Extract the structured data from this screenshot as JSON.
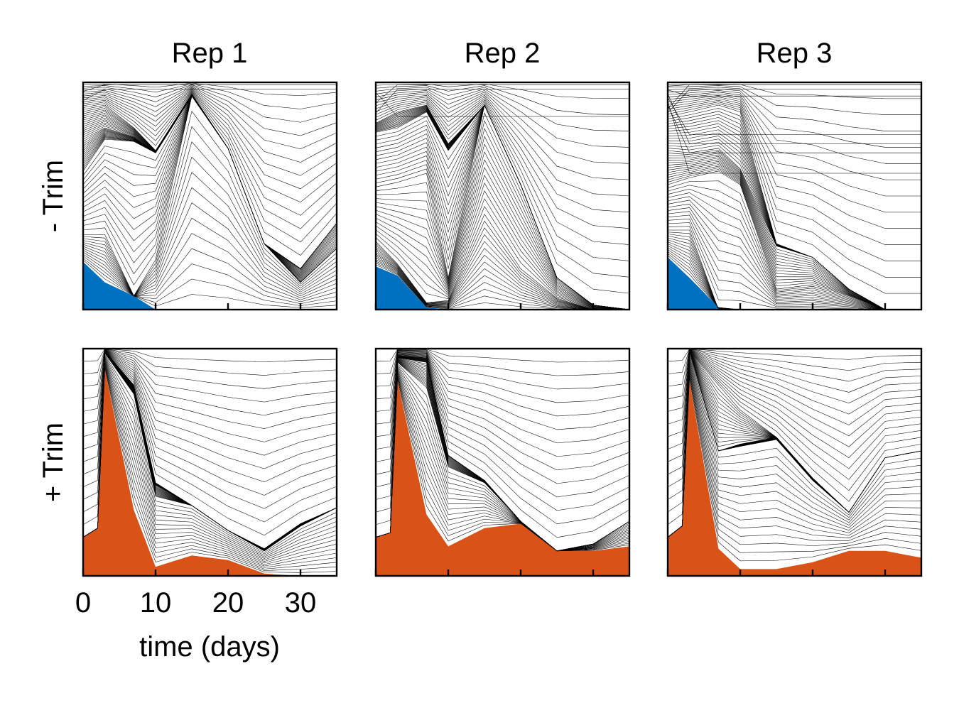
{
  "chart_data": {
    "type": "area",
    "subtype": "stacked-clone-fractions (Muller-style)",
    "grid": false,
    "legend": "none",
    "columns": [
      "Rep 1",
      "Rep 2",
      "Rep 3"
    ],
    "rows": [
      "- Trim",
      "+ Trim"
    ],
    "xlabel": "time (days)",
    "xlim": [
      0,
      35
    ],
    "xticks": [
      0,
      10,
      20,
      30
    ],
    "ylim": [
      0,
      1
    ],
    "highlight_colors": {
      "- Trim": "#0070c0",
      "+ Trim": "#d95319"
    },
    "line_color": "#000000",
    "panels": [
      {
        "row": "- Trim",
        "column": "Rep 1",
        "x": [
          0,
          3,
          7,
          10,
          15,
          20,
          25,
          30,
          35
        ],
        "highlight": [
          0.21,
          0.12,
          0.06,
          0.0,
          0.0,
          0.0,
          0.0,
          0.0,
          0.0
        ],
        "boundaries": [
          [
            0.33,
            0.33,
            0.06,
            0.22,
            0.94,
            0.71,
            0.29,
            0.12,
            0.27
          ],
          [
            0.61,
            0.75,
            0.74,
            0.69,
            0.94,
            0.71,
            0.29,
            0.12,
            0.27
          ],
          [
            0.75,
            0.8,
            0.76,
            0.69,
            0.94,
            0.71,
            0.29,
            0.18,
            0.38
          ],
          [
            0.88,
            0.9,
            0.8,
            0.7,
            0.95,
            0.71,
            0.29,
            0.18,
            0.38
          ]
        ],
        "top_boundaries": [
          0.97,
          0.99
        ],
        "n_boundaries": 70
      },
      {
        "row": "- Trim",
        "column": "Rep 2",
        "x": [
          0,
          3,
          7,
          10,
          15,
          20,
          25,
          30,
          35
        ],
        "highlight": [
          0.19,
          0.15,
          0.01,
          0.0,
          0.0,
          0.0,
          0.0,
          0.0,
          0.0
        ],
        "boundaries": [
          [
            0.3,
            0.2,
            0.03,
            0.04,
            0.42,
            0.18,
            0.05,
            0.0,
            0.0
          ],
          [
            0.54,
            0.56,
            0.6,
            0.14,
            0.9,
            0.55,
            0.14,
            0.02,
            0.0
          ],
          [
            0.78,
            0.8,
            0.87,
            0.7,
            0.9,
            0.55,
            0.14,
            0.02,
            0.0
          ],
          [
            0.82,
            0.87,
            0.9,
            0.73,
            0.9,
            0.55,
            0.14,
            0.02,
            0.0
          ]
        ],
        "top_boundaries": [
          0.97,
          0.99,
          0.85
        ],
        "n_boundaries": 70
      },
      {
        "row": "- Trim",
        "column": "Rep 3",
        "x": [
          0,
          3,
          7,
          10,
          15,
          20,
          25,
          30,
          35
        ],
        "highlight": [
          0.23,
          0.14,
          0.01,
          0.0,
          0.0,
          0.0,
          0.0,
          0.0,
          0.0
        ],
        "boundaries": [
          [
            0.35,
            0.35,
            0.0,
            0.0,
            0.0,
            0.0,
            0.0,
            0.0,
            0.0
          ],
          [
            0.55,
            0.58,
            0.61,
            0.55,
            0.09,
            0.11,
            0.06,
            0.0,
            0.0
          ],
          [
            0.7,
            0.69,
            0.71,
            0.62,
            0.28,
            0.23,
            0.09,
            0.0,
            0.0
          ],
          [
            0.85,
            0.87,
            0.9,
            0.87,
            0.29,
            0.23,
            0.09,
            0.0,
            0.0
          ]
        ],
        "top_boundaries": [
          0.97,
          0.99,
          0.69,
          0.6,
          0.77,
          0.73,
          0.94,
          0.99
        ],
        "n_boundaries": 70
      },
      {
        "row": "+ Trim",
        "column": "Rep 1",
        "x": [
          0,
          2,
          3,
          7,
          10,
          15,
          20,
          25,
          30,
          35
        ],
        "highlight": [
          0.17,
          0.21,
          0.91,
          0.29,
          0.04,
          0.09,
          0.07,
          0.01,
          0.0,
          0.0
        ],
        "boundaries": [
          [
            0.17,
            0.21,
            0.98,
            0.8,
            0.35,
            0.31,
            0.2,
            0.11,
            0.22,
            0.3
          ],
          [
            0.17,
            0.21,
            0.99,
            0.82,
            0.4,
            0.31,
            0.2,
            0.11,
            0.22,
            0.3
          ],
          [
            0.17,
            0.21,
            0.99,
            0.84,
            0.41,
            0.31,
            0.2,
            0.12,
            0.23,
            0.3
          ]
        ],
        "n_boundaries": 60
      },
      {
        "row": "+ Trim",
        "column": "Rep 2",
        "x": [
          0,
          2,
          3,
          7,
          10,
          15,
          20,
          25,
          30,
          35
        ],
        "highlight": [
          0.17,
          0.19,
          0.86,
          0.27,
          0.13,
          0.21,
          0.23,
          0.11,
          0.11,
          0.13
        ],
        "boundaries": [
          [
            0.17,
            0.19,
            0.94,
            0.83,
            0.48,
            0.41,
            0.24,
            0.11,
            0.14,
            0.24
          ],
          [
            0.17,
            0.19,
            0.96,
            0.94,
            0.53,
            0.42,
            0.24,
            0.11,
            0.14,
            0.24
          ],
          [
            0.17,
            0.19,
            0.97,
            0.96,
            0.53,
            0.42,
            0.24,
            0.11,
            0.14,
            0.24
          ]
        ],
        "n_boundaries": 60
      },
      {
        "row": "+ Trim",
        "column": "Rep 3",
        "x": [
          0,
          2,
          3,
          7,
          10,
          15,
          20,
          25,
          30,
          35
        ],
        "highlight": [
          0.17,
          0.22,
          0.86,
          0.12,
          0.03,
          0.03,
          0.06,
          0.11,
          0.11,
          0.08
        ],
        "boundaries": [
          [
            0.17,
            0.22,
            0.99,
            0.55,
            0.57,
            0.6,
            0.42,
            0.28,
            0.52,
            0.55
          ],
          [
            0.17,
            0.22,
            0.99,
            0.55,
            0.58,
            0.61,
            0.43,
            0.28,
            0.52,
            0.55
          ],
          [
            0.17,
            0.22,
            0.99,
            0.84,
            0.73,
            0.61,
            0.43,
            0.28,
            0.52,
            0.55
          ]
        ],
        "n_boundaries": 60
      }
    ]
  }
}
